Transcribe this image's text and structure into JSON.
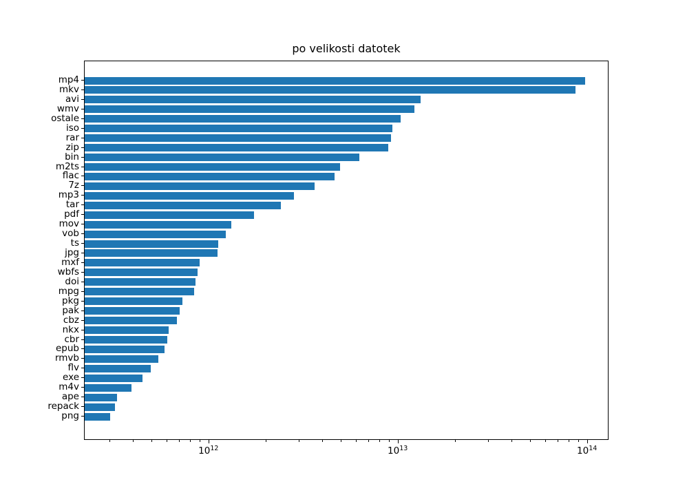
{
  "chart_data": {
    "type": "bar",
    "orientation": "horizontal",
    "title": "po velikosti datotek",
    "xscale": "log",
    "xlim": [
      220000000000.0,
      130000000000000.0
    ],
    "grid": false,
    "legend": null,
    "bar_color": "#1f77b4",
    "axis_color": "#000000",
    "background_color": "#ffffff",
    "xticks": [
      {
        "value": 1000000000000.0,
        "base": "10",
        "exp": "12"
      },
      {
        "value": 10000000000000.0,
        "base": "10",
        "exp": "13"
      },
      {
        "value": 100000000000000.0,
        "base": "10",
        "exp": "14"
      }
    ],
    "categories": [
      "mp4",
      "mkv",
      "avi",
      "wmv",
      "ostale",
      "iso",
      "rar",
      "zip",
      "bin",
      "m2ts",
      "flac",
      "7z",
      "mp3",
      "tar",
      "pdf",
      "mov",
      "vob",
      "ts",
      "jpg",
      "mxf",
      "wbfs",
      "doi",
      "mpg",
      "pkg",
      "pak",
      "cbz",
      "nkx",
      "cbr",
      "epub",
      "rmvb",
      "flv",
      "exe",
      "m4v",
      "ape",
      "repack",
      "png"
    ],
    "values": [
      97000000000000.0,
      86000000000000.0,
      13100000000000.0,
      12100000000000.0,
      10300000000000.0,
      9300000000000.0,
      9100000000000.0,
      8800000000000.0,
      6200000000000.0,
      4900000000000.0,
      4600000000000.0,
      3600000000000.0,
      2800000000000.0,
      2400000000000.0,
      1730000000000.0,
      1310000000000.0,
      1220000000000.0,
      1120000000000.0,
      1110000000000.0,
      890000000000.0,
      870000000000.0,
      850000000000.0,
      830000000000.0,
      720000000000.0,
      700000000000.0,
      675000000000.0,
      610000000000.0,
      600000000000.0,
      580000000000.0,
      540000000000.0,
      490000000000.0,
      445000000000.0,
      390000000000.0,
      326000000000.0,
      318000000000.0,
      300000000000.0
    ]
  }
}
